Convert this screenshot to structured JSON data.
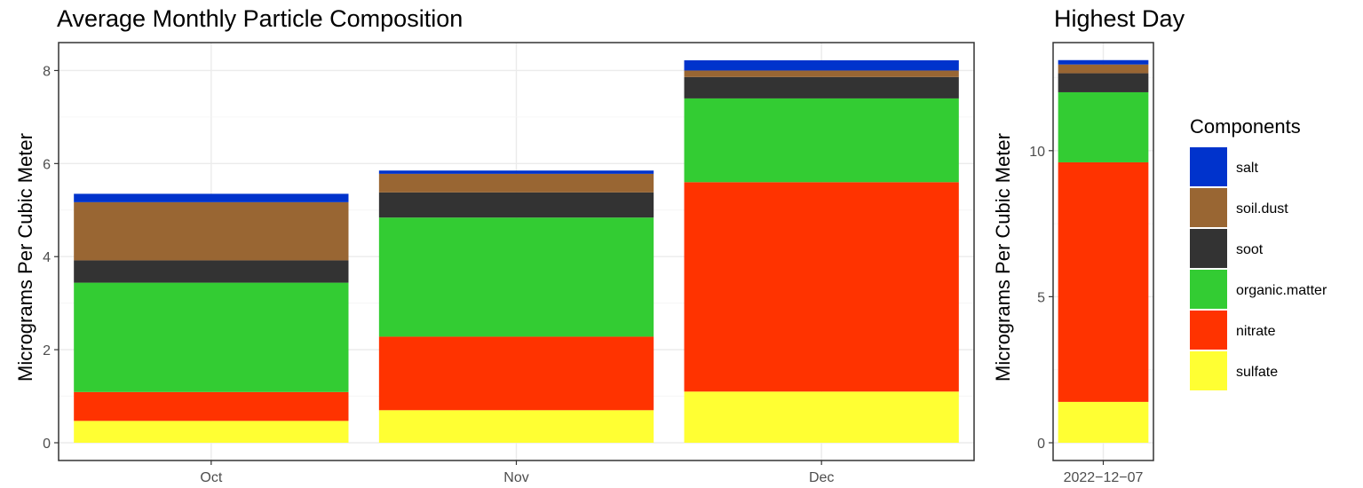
{
  "chart_data": [
    {
      "type": "bar",
      "stacked": true,
      "title": "Average Monthly Particle Composition",
      "xlabel": "",
      "ylabel": "Micrograms Per Cubic Meter",
      "ylim": [
        0,
        8.6
      ],
      "yticks": [
        0,
        2,
        4,
        6,
        8
      ],
      "grid": true,
      "categories": [
        "Oct",
        "Nov",
        "Dec"
      ],
      "series": [
        {
          "name": "sulfate",
          "values": [
            0.47,
            0.7,
            1.1
          ]
        },
        {
          "name": "nitrate",
          "values": [
            0.62,
            1.58,
            4.5
          ]
        },
        {
          "name": "organic.matter",
          "values": [
            2.35,
            2.56,
            1.8
          ]
        },
        {
          "name": "soot",
          "values": [
            0.48,
            0.54,
            0.46
          ]
        },
        {
          "name": "soil.dust",
          "values": [
            1.25,
            0.4,
            0.14
          ]
        },
        {
          "name": "salt",
          "values": [
            0.18,
            0.07,
            0.22
          ]
        }
      ]
    },
    {
      "type": "bar",
      "stacked": true,
      "title": "Highest Day",
      "xlabel": "",
      "ylabel": "Micrograms Per Cubic Meter",
      "ylim": [
        0,
        13.7
      ],
      "yticks": [
        0,
        5,
        10
      ],
      "grid": true,
      "categories": [
        "2022−12−07"
      ],
      "series": [
        {
          "name": "sulfate",
          "values": [
            1.4
          ]
        },
        {
          "name": "nitrate",
          "values": [
            8.2
          ]
        },
        {
          "name": "organic.matter",
          "values": [
            2.4
          ]
        },
        {
          "name": "soot",
          "values": [
            0.65
          ]
        },
        {
          "name": "soil.dust",
          "values": [
            0.3
          ]
        },
        {
          "name": "salt",
          "values": [
            0.15
          ]
        }
      ]
    }
  ],
  "legend": {
    "title": "Components",
    "position": "right",
    "items": [
      {
        "name": "salt",
        "color": "#0033CC"
      },
      {
        "name": "soil.dust",
        "color": "#996633"
      },
      {
        "name": "soot",
        "color": "#333333"
      },
      {
        "name": "organic.matter",
        "color": "#33CC33"
      },
      {
        "name": "nitrate",
        "color": "#FF3300"
      },
      {
        "name": "sulfate",
        "color": "#FFFF33"
      }
    ]
  },
  "colors": {
    "sulfate": "#FFFF33",
    "nitrate": "#FF3300",
    "organic.matter": "#33CC33",
    "soot": "#333333",
    "soil.dust": "#996633",
    "salt": "#0033CC"
  }
}
